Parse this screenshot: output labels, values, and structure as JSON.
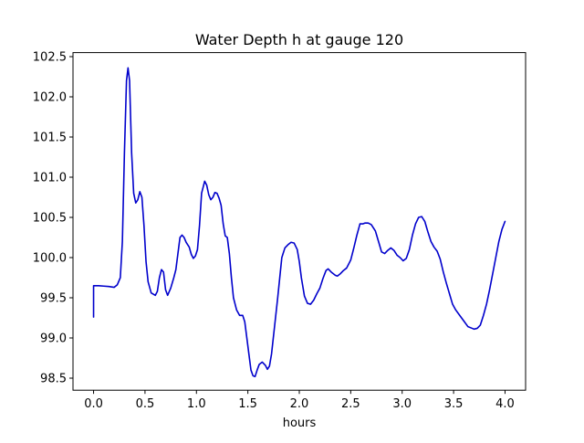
{
  "chart_data": {
    "type": "line",
    "title": "Water Depth h at gauge 120",
    "xlabel": "hours",
    "ylabel": "",
    "xlim": [
      -0.2,
      4.2
    ],
    "ylim": [
      98.35,
      102.55
    ],
    "xticks": [
      0.0,
      0.5,
      1.0,
      1.5,
      2.0,
      2.5,
      3.0,
      3.5,
      4.0
    ],
    "xtick_labels": [
      "0.0",
      "0.5",
      "1.0",
      "1.5",
      "2.0",
      "2.5",
      "3.0",
      "3.5",
      "4.0"
    ],
    "yticks": [
      98.5,
      99.0,
      99.5,
      100.0,
      100.5,
      101.0,
      101.5,
      102.0,
      102.5
    ],
    "ytick_labels": [
      "98.5",
      "99.0",
      "99.5",
      "100.0",
      "100.5",
      "101.0",
      "101.5",
      "102.0",
      "102.5"
    ],
    "grid": false,
    "legend": "none",
    "series": [
      {
        "color": "#0000cc",
        "points": [
          [
            0.0,
            99.26
          ],
          [
            0.0,
            99.65
          ],
          [
            0.05,
            99.65
          ],
          [
            0.1,
            99.645
          ],
          [
            0.15,
            99.64
          ],
          [
            0.2,
            99.63
          ],
          [
            0.23,
            99.66
          ],
          [
            0.26,
            99.75
          ],
          [
            0.28,
            100.2
          ],
          [
            0.3,
            101.3
          ],
          [
            0.32,
            102.2
          ],
          [
            0.335,
            102.36
          ],
          [
            0.35,
            102.2
          ],
          [
            0.37,
            101.3
          ],
          [
            0.39,
            100.8
          ],
          [
            0.41,
            100.68
          ],
          [
            0.43,
            100.72
          ],
          [
            0.45,
            100.82
          ],
          [
            0.47,
            100.75
          ],
          [
            0.49,
            100.4
          ],
          [
            0.51,
            99.95
          ],
          [
            0.53,
            99.7
          ],
          [
            0.56,
            99.56
          ],
          [
            0.6,
            99.53
          ],
          [
            0.62,
            99.58
          ],
          [
            0.64,
            99.75
          ],
          [
            0.66,
            99.85
          ],
          [
            0.68,
            99.82
          ],
          [
            0.7,
            99.6
          ],
          [
            0.72,
            99.53
          ],
          [
            0.75,
            99.62
          ],
          [
            0.78,
            99.75
          ],
          [
            0.8,
            99.85
          ],
          [
            0.82,
            100.05
          ],
          [
            0.84,
            100.25
          ],
          [
            0.86,
            100.28
          ],
          [
            0.88,
            100.25
          ],
          [
            0.9,
            100.19
          ],
          [
            0.93,
            100.13
          ],
          [
            0.95,
            100.04
          ],
          [
            0.97,
            99.99
          ],
          [
            0.99,
            100.02
          ],
          [
            1.01,
            100.1
          ],
          [
            1.03,
            100.4
          ],
          [
            1.05,
            100.8
          ],
          [
            1.08,
            100.95
          ],
          [
            1.1,
            100.9
          ],
          [
            1.12,
            100.78
          ],
          [
            1.14,
            100.72
          ],
          [
            1.16,
            100.75
          ],
          [
            1.18,
            100.81
          ],
          [
            1.2,
            100.8
          ],
          [
            1.22,
            100.74
          ],
          [
            1.24,
            100.65
          ],
          [
            1.26,
            100.42
          ],
          [
            1.28,
            100.27
          ],
          [
            1.3,
            100.25
          ],
          [
            1.32,
            100.05
          ],
          [
            1.34,
            99.75
          ],
          [
            1.36,
            99.5
          ],
          [
            1.39,
            99.35
          ],
          [
            1.42,
            99.28
          ],
          [
            1.45,
            99.28
          ],
          [
            1.47,
            99.2
          ],
          [
            1.49,
            99.0
          ],
          [
            1.51,
            98.8
          ],
          [
            1.53,
            98.6
          ],
          [
            1.55,
            98.53
          ],
          [
            1.57,
            98.52
          ],
          [
            1.59,
            98.6
          ],
          [
            1.61,
            98.67
          ],
          [
            1.64,
            98.7
          ],
          [
            1.67,
            98.66
          ],
          [
            1.69,
            98.61
          ],
          [
            1.71,
            98.65
          ],
          [
            1.73,
            98.8
          ],
          [
            1.76,
            99.15
          ],
          [
            1.79,
            99.5
          ],
          [
            1.81,
            99.75
          ],
          [
            1.83,
            100.0
          ],
          [
            1.86,
            100.12
          ],
          [
            1.89,
            100.16
          ],
          [
            1.92,
            100.19
          ],
          [
            1.95,
            100.18
          ],
          [
            1.98,
            100.1
          ],
          [
            2.0,
            99.95
          ],
          [
            2.02,
            99.75
          ],
          [
            2.05,
            99.52
          ],
          [
            2.08,
            99.43
          ],
          [
            2.11,
            99.42
          ],
          [
            2.14,
            99.47
          ],
          [
            2.17,
            99.55
          ],
          [
            2.2,
            99.62
          ],
          [
            2.23,
            99.74
          ],
          [
            2.26,
            99.84
          ],
          [
            2.28,
            99.86
          ],
          [
            2.31,
            99.82
          ],
          [
            2.35,
            99.78
          ],
          [
            2.37,
            99.77
          ],
          [
            2.4,
            99.8
          ],
          [
            2.43,
            99.84
          ],
          [
            2.46,
            99.87
          ],
          [
            2.5,
            99.97
          ],
          [
            2.53,
            100.12
          ],
          [
            2.56,
            100.28
          ],
          [
            2.59,
            100.42
          ],
          [
            2.62,
            100.42
          ],
          [
            2.64,
            100.43
          ],
          [
            2.67,
            100.43
          ],
          [
            2.7,
            100.41
          ],
          [
            2.74,
            100.33
          ],
          [
            2.77,
            100.2
          ],
          [
            2.8,
            100.07
          ],
          [
            2.83,
            100.05
          ],
          [
            2.86,
            100.09
          ],
          [
            2.89,
            100.12
          ],
          [
            2.92,
            100.09
          ],
          [
            2.95,
            100.03
          ],
          [
            2.98,
            100.0
          ],
          [
            3.01,
            99.96
          ],
          [
            3.04,
            99.99
          ],
          [
            3.07,
            100.1
          ],
          [
            3.1,
            100.28
          ],
          [
            3.13,
            100.42
          ],
          [
            3.16,
            100.5
          ],
          [
            3.19,
            100.51
          ],
          [
            3.22,
            100.45
          ],
          [
            3.25,
            100.32
          ],
          [
            3.28,
            100.2
          ],
          [
            3.31,
            100.13
          ],
          [
            3.34,
            100.08
          ],
          [
            3.37,
            99.98
          ],
          [
            3.4,
            99.82
          ],
          [
            3.43,
            99.68
          ],
          [
            3.46,
            99.55
          ],
          [
            3.49,
            99.42
          ],
          [
            3.52,
            99.35
          ],
          [
            3.56,
            99.28
          ],
          [
            3.6,
            99.21
          ],
          [
            3.64,
            99.14
          ],
          [
            3.68,
            99.12
          ],
          [
            3.7,
            99.11
          ],
          [
            3.73,
            99.12
          ],
          [
            3.76,
            99.16
          ],
          [
            3.79,
            99.28
          ],
          [
            3.82,
            99.42
          ],
          [
            3.85,
            99.6
          ],
          [
            3.88,
            99.8
          ],
          [
            3.91,
            100.0
          ],
          [
            3.94,
            100.2
          ],
          [
            3.97,
            100.35
          ],
          [
            4.0,
            100.45
          ]
        ]
      }
    ]
  }
}
